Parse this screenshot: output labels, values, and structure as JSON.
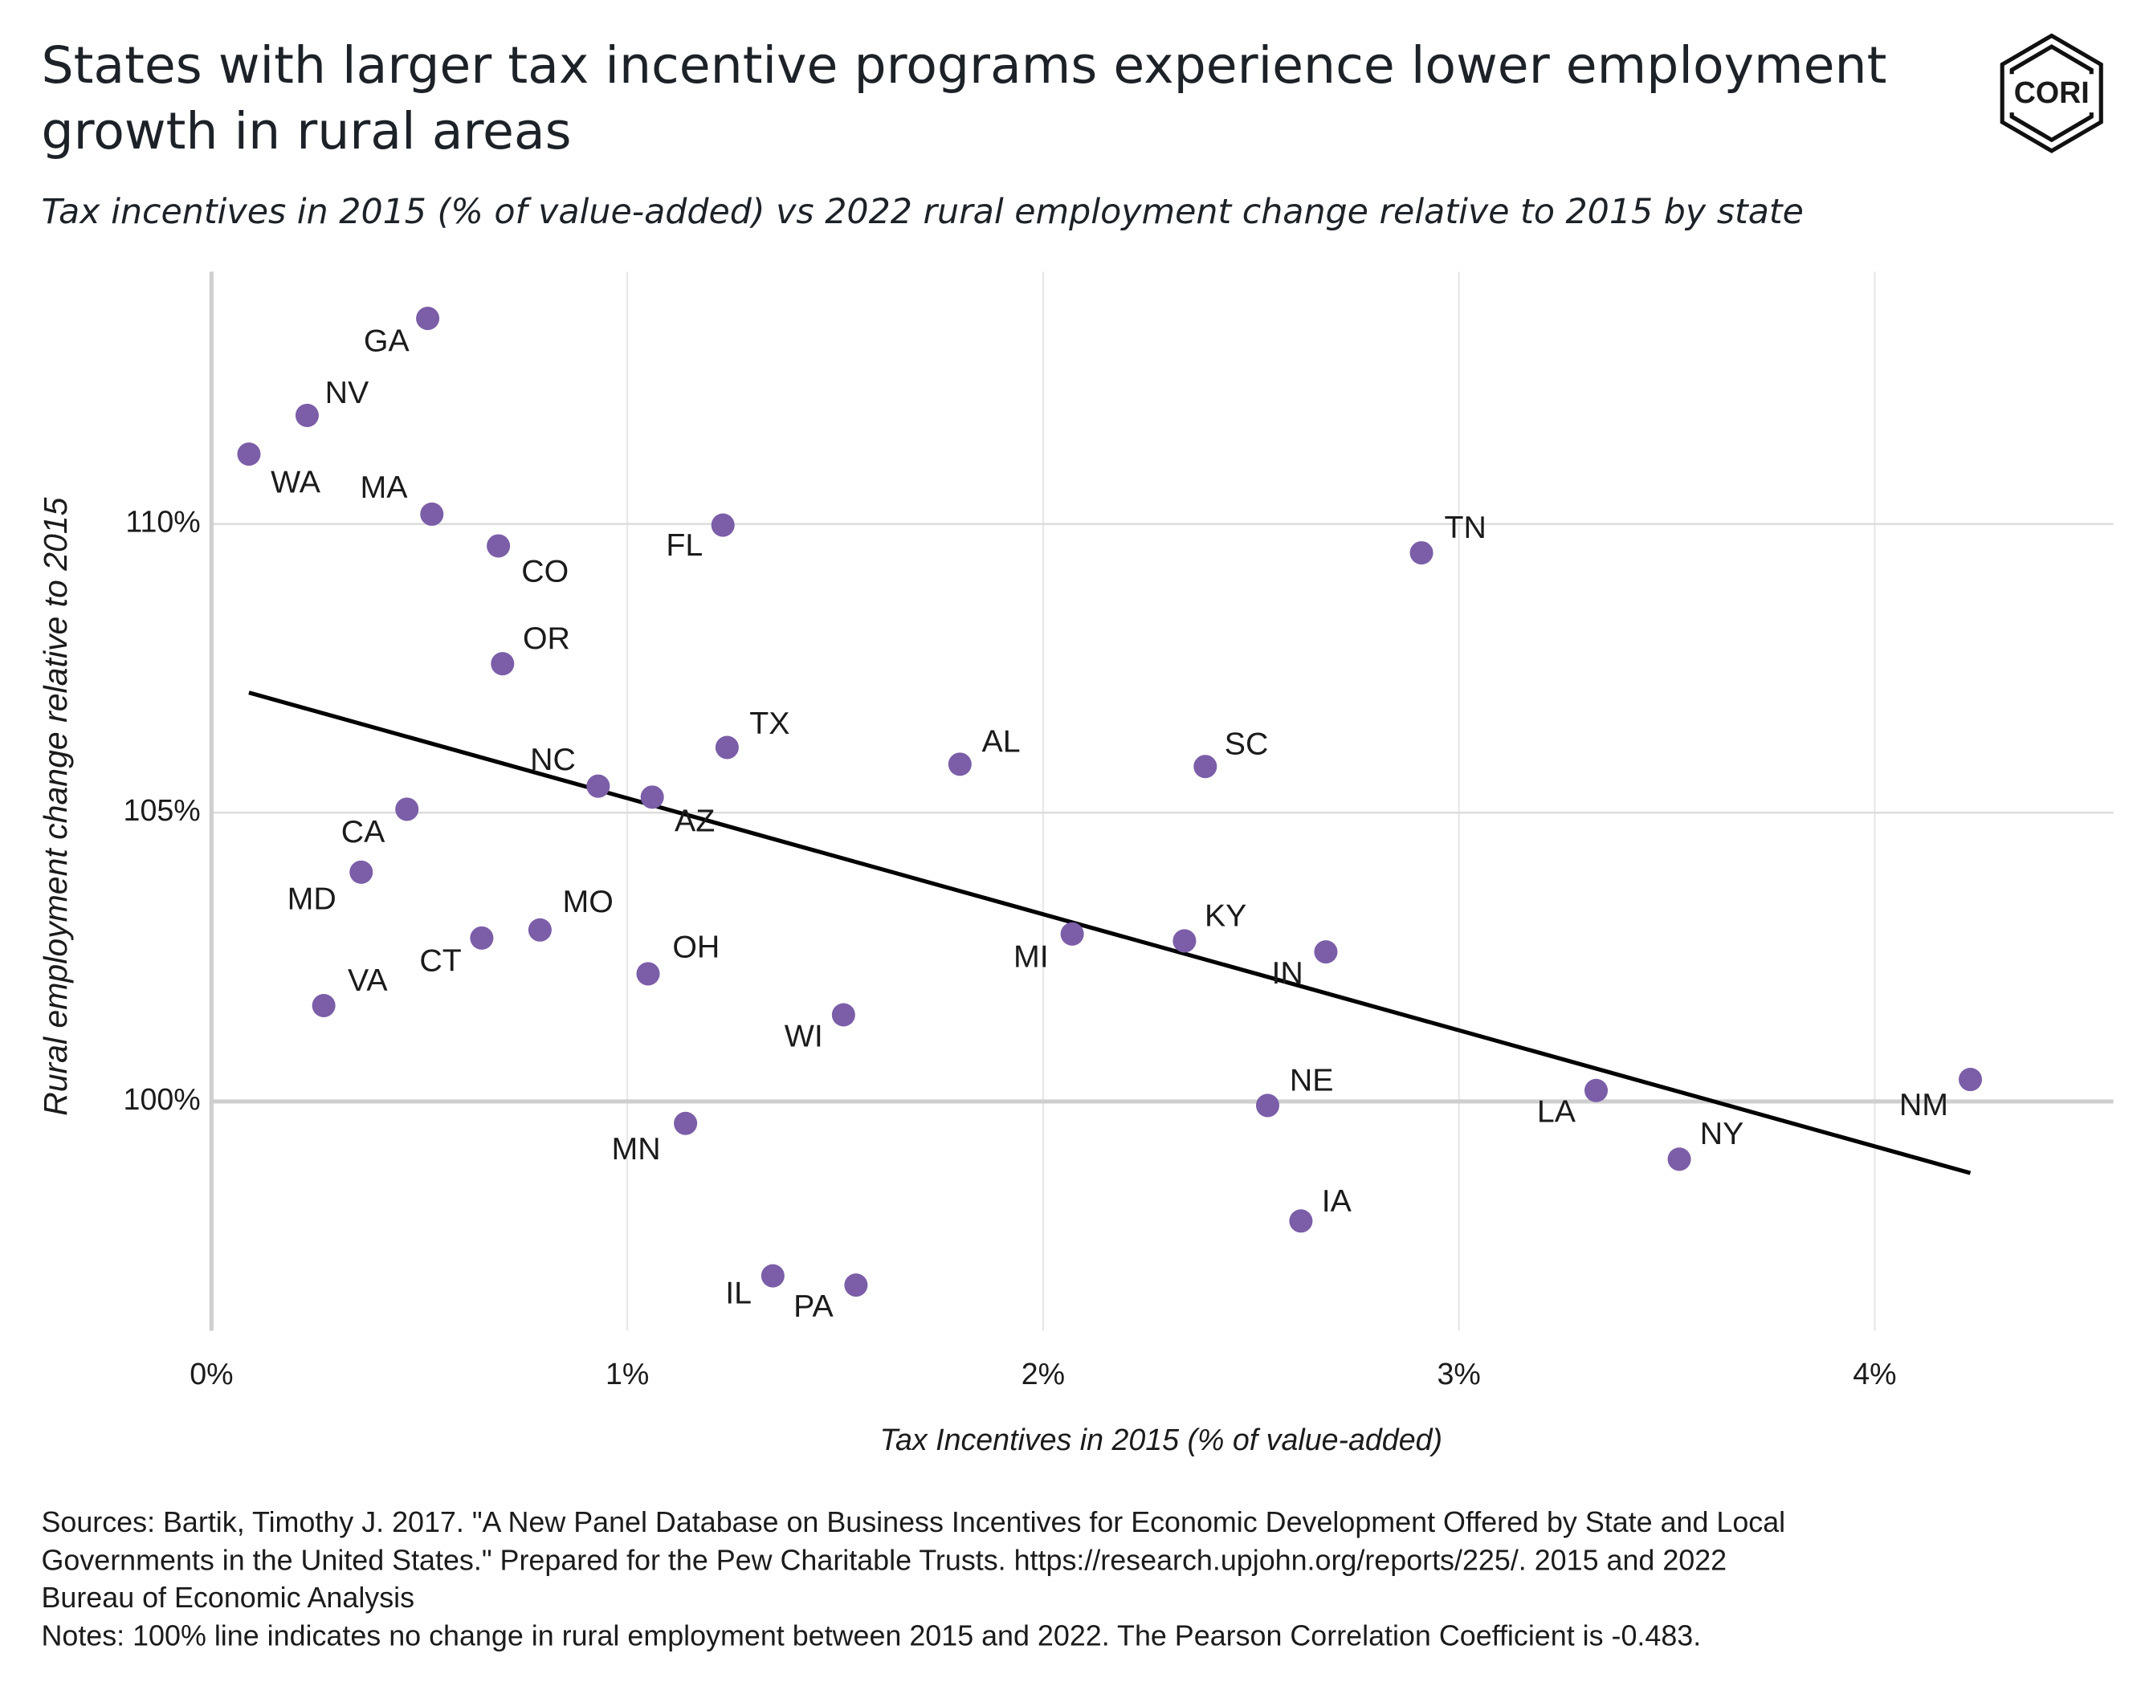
{
  "chart_data": {
    "type": "scatter",
    "title": [
      "States with larger tax incentive programs experience lower employment",
      "growth in rural areas"
    ],
    "subtitle": "Tax incentives in 2015 (% of value-added) vs 2022 rural employment change relative to 2015 by state",
    "logo": "CORI",
    "x_label": "Tax Incentives in 2015 (% of value-added)",
    "y_label": "Rural employment change relative to 2015",
    "labels": [
      "GA",
      "NV",
      "WA",
      "MA",
      "CO",
      "FL",
      "TN",
      "OR",
      "TX",
      "AL",
      "SC",
      "NC",
      "AZ",
      "CA",
      "MD",
      "MO",
      "CT",
      "MI",
      "KY",
      "IN",
      "OH",
      "VA",
      "WI",
      "NE",
      "LA",
      "NM",
      "MN",
      "NY",
      "IA",
      "IL",
      "PA"
    ],
    "x": [
      0.52,
      0.23,
      0.09,
      0.53,
      0.69,
      1.23,
      2.91,
      0.7,
      1.24,
      1.8,
      2.39,
      0.93,
      1.06,
      0.47,
      0.36,
      0.79,
      0.65,
      2.07,
      2.34,
      2.68,
      1.05,
      0.27,
      1.52,
      2.54,
      3.33,
      4.23,
      1.14,
      3.53,
      2.62,
      1.35,
      1.55
    ],
    "y": [
      113.56,
      111.88,
      111.21,
      110.17,
      109.62,
      109.98,
      109.5,
      107.58,
      106.13,
      105.84,
      105.8,
      105.46,
      105.27,
      105.06,
      103.97,
      102.97,
      102.83,
      102.9,
      102.78,
      102.59,
      102.21,
      101.66,
      101.5,
      99.93,
      100.19,
      100.38,
      99.62,
      99.0,
      97.93,
      96.98,
      96.82
    ],
    "color": "#7b5ea7",
    "trend": {
      "x": [
        0.09,
        4.23
      ],
      "y": [
        107.08,
        98.76
      ],
      "color": "#000000"
    },
    "xlim": [
      0,
      4.574
    ],
    "ylim": [
      96.03,
      114.37
    ],
    "xticks": [
      {
        "value": 0,
        "label": "0%"
      },
      {
        "value": 1,
        "label": "1%"
      },
      {
        "value": 2,
        "label": "2%"
      },
      {
        "value": 3,
        "label": "3%"
      },
      {
        "value": 4,
        "label": "4%"
      }
    ],
    "yticks": [
      {
        "value": 100,
        "label": "100%"
      },
      {
        "value": 105,
        "label": "105%"
      },
      {
        "value": 110,
        "label": "110%"
      }
    ],
    "grid": true,
    "sources": [
      "Sources: Bartik, Timothy J. 2017. \"A New Panel Database on Business Incentives for Economic Development Offered by State and Local",
      "Governments in the United States.\" Prepared for the Pew Charitable Trusts. https://research.upjohn.org/reports/225/. 2015 and 2022",
      "Bureau of Economic Analysis"
    ],
    "notes": "Notes: 100% line indicates no change in rural employment between 2015 and 2022. The Pearson Correlation Coefficient is -0.483."
  }
}
